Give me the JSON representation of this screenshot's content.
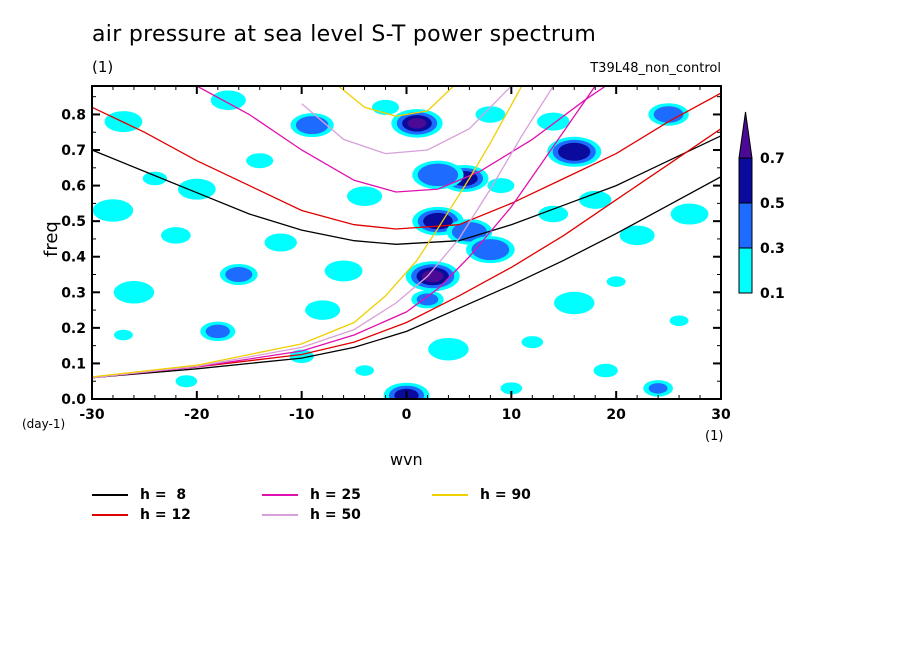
{
  "header": {
    "title": "air pressure at sea level S-T power spectrum",
    "unit_left": "(1)",
    "run_label": "T39L48_non_control"
  },
  "chart_data": {
    "type": "heatmap",
    "title": "air pressure at sea level S-T power spectrum",
    "xlabel": "wvn",
    "ylabel": "freq",
    "x_unit": "(1)",
    "y_unit": "(day-1)",
    "xlim": [
      -30,
      30
    ],
    "ylim": [
      0,
      0.88
    ],
    "xticks": [
      -30,
      -20,
      -10,
      0,
      10,
      20,
      30
    ],
    "xtick_labels": [
      "-30",
      "-20",
      "-10",
      "0",
      "10",
      "20",
      "30"
    ],
    "yticks": [
      0.0,
      0.1,
      0.2,
      0.3,
      0.4,
      0.5,
      0.6,
      0.7,
      0.8
    ],
    "ytick_labels": [
      "0.0",
      "0.1",
      "0.2",
      "0.3",
      "0.4",
      "0.5",
      "0.6",
      "0.7",
      "0.8"
    ],
    "colorbar": {
      "levels": [
        0.1,
        0.3,
        0.5,
        0.7
      ],
      "level_labels": [
        "0.1",
        "0.3",
        "0.5",
        "0.7"
      ],
      "colors": [
        "#00ffff",
        "#1e6cff",
        "#0a0a9c",
        "#4b0a96"
      ],
      "extend": "max"
    },
    "contour_patches": [
      {
        "x": 1.0,
        "y": 0.775,
        "level": 0.7
      },
      {
        "x": 2.5,
        "y": 0.345,
        "level": 0.7
      },
      {
        "x": 0.0,
        "y": 0.01,
        "level": 0.5
      },
      {
        "x": 5.5,
        "y": 0.62,
        "level": 0.5
      },
      {
        "x": 3.0,
        "y": 0.5,
        "level": 0.5
      },
      {
        "x": 16.0,
        "y": 0.695,
        "level": 0.5
      },
      {
        "x": 6.0,
        "y": 0.47,
        "level": 0.3
      },
      {
        "x": 8.0,
        "y": 0.42,
        "level": 0.3
      },
      {
        "x": 3.0,
        "y": 0.63,
        "level": 0.3
      },
      {
        "x": 24.0,
        "y": 0.03,
        "level": 0.3
      },
      {
        "x": 2.0,
        "y": 0.28,
        "level": 0.3
      },
      {
        "x": -18.0,
        "y": 0.19,
        "level": 0.3
      },
      {
        "x": -16.0,
        "y": 0.35,
        "level": 0.3
      },
      {
        "x": 25.0,
        "y": 0.8,
        "level": 0.3
      },
      {
        "x": -9.0,
        "y": 0.77,
        "level": 0.3
      },
      {
        "x": -8.0,
        "y": 0.25,
        "level": 0.1
      },
      {
        "x": -20.0,
        "y": 0.59,
        "level": 0.1
      },
      {
        "x": -28.0,
        "y": 0.53,
        "level": 0.1
      },
      {
        "x": 20.0,
        "y": 0.33,
        "level": 0.1
      },
      {
        "x": 12.0,
        "y": 0.16,
        "level": 0.1
      },
      {
        "x": -24.0,
        "y": 0.62,
        "level": 0.1
      },
      {
        "x": -14.0,
        "y": 0.67,
        "level": 0.1
      },
      {
        "x": -22.0,
        "y": 0.46,
        "level": 0.1
      },
      {
        "x": -12.0,
        "y": 0.44,
        "level": 0.1
      },
      {
        "x": -4.0,
        "y": 0.57,
        "level": 0.1
      },
      {
        "x": -6.0,
        "y": 0.36,
        "level": 0.1
      },
      {
        "x": -26.0,
        "y": 0.3,
        "level": 0.1
      },
      {
        "x": -27.0,
        "y": 0.18,
        "level": 0.1
      },
      {
        "x": -21.0,
        "y": 0.05,
        "level": 0.1
      },
      {
        "x": -10.0,
        "y": 0.12,
        "level": 0.1
      },
      {
        "x": 9.0,
        "y": 0.6,
        "level": 0.1
      },
      {
        "x": 14.0,
        "y": 0.52,
        "level": 0.1
      },
      {
        "x": 18.0,
        "y": 0.56,
        "level": 0.1
      },
      {
        "x": 22.0,
        "y": 0.46,
        "level": 0.1
      },
      {
        "x": 27.0,
        "y": 0.52,
        "level": 0.1
      },
      {
        "x": 16.0,
        "y": 0.27,
        "level": 0.1
      },
      {
        "x": 26.0,
        "y": 0.22,
        "level": 0.1
      },
      {
        "x": 10.0,
        "y": 0.03,
        "level": 0.1
      },
      {
        "x": 19.0,
        "y": 0.08,
        "level": 0.1
      },
      {
        "x": -2.0,
        "y": 0.82,
        "level": 0.1
      },
      {
        "x": 8.0,
        "y": 0.8,
        "level": 0.1
      },
      {
        "x": 14.0,
        "y": 0.78,
        "level": 0.1
      },
      {
        "x": -17.0,
        "y": 0.84,
        "level": 0.1
      },
      {
        "x": -27.0,
        "y": 0.78,
        "level": 0.1
      },
      {
        "x": 4.0,
        "y": 0.14,
        "level": 0.1
      },
      {
        "x": -4.0,
        "y": 0.08,
        "level": 0.1
      }
    ],
    "series": [
      {
        "name": "h =  8",
        "color": "#000000",
        "branch": "inertia-gravity",
        "x": [
          -30,
          -25,
          -20,
          -15,
          -10,
          -5,
          -1,
          5,
          10,
          15,
          20,
          25,
          30
        ],
        "y": [
          0.7,
          0.64,
          0.58,
          0.52,
          0.475,
          0.445,
          0.435,
          0.445,
          0.49,
          0.545,
          0.6,
          0.67,
          0.74
        ]
      },
      {
        "name": "h =  8",
        "color": "#000000",
        "branch": "kelvin",
        "x": [
          -30,
          -20,
          -10,
          -5,
          0,
          5,
          10,
          15,
          20,
          25,
          30
        ],
        "y": [
          0.06,
          0.085,
          0.115,
          0.145,
          0.19,
          0.255,
          0.32,
          0.39,
          0.465,
          0.545,
          0.625
        ]
      },
      {
        "name": "h = 12",
        "color": "#e00000",
        "branch": "inertia-gravity",
        "x": [
          -30,
          -25,
          -20,
          -15,
          -10,
          -5,
          -1,
          5,
          10,
          15,
          20,
          25,
          30
        ],
        "y": [
          0.82,
          0.75,
          0.67,
          0.6,
          0.53,
          0.49,
          0.478,
          0.49,
          0.55,
          0.62,
          0.69,
          0.78,
          0.86
        ]
      },
      {
        "name": "h = 12",
        "color": "#e00000",
        "branch": "kelvin",
        "x": [
          -30,
          -20,
          -10,
          -5,
          0,
          5,
          10,
          15,
          20,
          25,
          30
        ],
        "y": [
          0.06,
          0.09,
          0.125,
          0.16,
          0.215,
          0.29,
          0.37,
          0.46,
          0.56,
          0.66,
          0.76
        ]
      },
      {
        "name": "h = 25",
        "color": "#e010b0",
        "branch": "inertia-gravity",
        "x": [
          -20,
          -15,
          -10,
          -5,
          -1,
          3,
          7,
          12,
          17,
          19
        ],
        "y": [
          0.88,
          0.8,
          0.7,
          0.615,
          0.582,
          0.59,
          0.64,
          0.73,
          0.84,
          0.88
        ]
      },
      {
        "name": "h = 25",
        "color": "#e010b0",
        "branch": "kelvin",
        "x": [
          -30,
          -20,
          -10,
          -5,
          0,
          3,
          6,
          10,
          14,
          18
        ],
        "y": [
          0.06,
          0.09,
          0.135,
          0.18,
          0.245,
          0.31,
          0.4,
          0.54,
          0.71,
          0.88
        ]
      },
      {
        "name": "h = 50",
        "color": "#d8a0d8",
        "branch": "inertia-gravity",
        "x": [
          -10,
          -6,
          -2,
          2,
          6,
          10
        ],
        "y": [
          0.83,
          0.73,
          0.69,
          0.7,
          0.76,
          0.88
        ]
      },
      {
        "name": "h = 50",
        "color": "#d8a0d8",
        "branch": "kelvin",
        "x": [
          -30,
          -20,
          -10,
          -5,
          -1,
          2,
          5,
          8,
          11,
          14
        ],
        "y": [
          0.06,
          0.092,
          0.145,
          0.195,
          0.27,
          0.345,
          0.45,
          0.59,
          0.74,
          0.88
        ]
      },
      {
        "name": "h = 90",
        "color": "#f0d000",
        "branch": "inertia-gravity",
        "x": [
          -6.5,
          -4,
          -1,
          2,
          4.5
        ],
        "y": [
          0.88,
          0.82,
          0.795,
          0.81,
          0.88
        ]
      },
      {
        "name": "h = 90",
        "color": "#f0d000",
        "branch": "kelvin",
        "x": [
          -30,
          -20,
          -10,
          -5,
          -2,
          1,
          3,
          6,
          8,
          11
        ],
        "y": [
          0.062,
          0.095,
          0.155,
          0.215,
          0.29,
          0.39,
          0.48,
          0.62,
          0.72,
          0.88
        ]
      }
    ],
    "legend": {
      "placement": "bottom",
      "entries": [
        {
          "label": "h =  8",
          "color": "#000000"
        },
        {
          "label": "h = 12",
          "color": "#e00000"
        },
        {
          "label": "h = 25",
          "color": "#e010b0"
        },
        {
          "label": "h = 50",
          "color": "#d8a0d8"
        },
        {
          "label": "h = 90",
          "color": "#f0d000"
        }
      ]
    }
  }
}
